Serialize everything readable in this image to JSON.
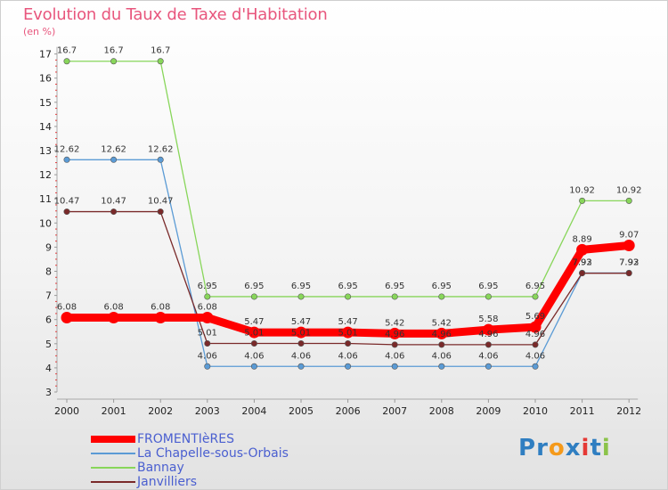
{
  "header": {
    "title": "Evolution du Taux de Taxe d'Habitation",
    "subtitle": "(en %)"
  },
  "chart_data": {
    "type": "line",
    "title": "Evolution du Taux de Taxe d'Habitation",
    "ylabel": "(en %)",
    "xlabel": "",
    "categories": [
      "2000",
      "2001",
      "2002",
      "2003",
      "2004",
      "2005",
      "2006",
      "2007",
      "2008",
      "2009",
      "2010",
      "2011",
      "2012"
    ],
    "ylim": [
      3,
      17
    ],
    "yticks": [
      "3",
      "4",
      "5",
      "6",
      "7",
      "8",
      "9",
      "10",
      "11",
      "12",
      "13",
      "14",
      "15",
      "16",
      "17"
    ],
    "grid": false,
    "legend_position": "bottom-left",
    "series": [
      {
        "name": "La Chapelle-sous-Orbais",
        "color": "#5b9bd5",
        "values": [
          12.62,
          12.62,
          12.62,
          4.06,
          4.06,
          4.06,
          4.06,
          4.06,
          4.06,
          4.06,
          4.06,
          7.93,
          7.93
        ],
        "labels": [
          "12.62",
          "12.62",
          "12.62",
          "4.06",
          "4.06",
          "4.06",
          "4.06",
          "4.06",
          "4.06",
          "4.06",
          "4.06",
          "7.93",
          "7.93"
        ]
      },
      {
        "name": "Bannay",
        "color": "#88d65a",
        "values": [
          16.7,
          16.7,
          16.7,
          6.95,
          6.95,
          6.95,
          6.95,
          6.95,
          6.95,
          6.95,
          6.95,
          10.92,
          10.92
        ],
        "labels": [
          "16.7",
          "16.7",
          "16.7",
          "6.95",
          "6.95",
          "6.95",
          "6.95",
          "6.95",
          "6.95",
          "6.95",
          "6.95",
          "10.92",
          "10.92"
        ]
      },
      {
        "name": "Janvilliers",
        "color": "#7a2a2a",
        "values": [
          10.47,
          10.47,
          10.47,
          5.01,
          5.01,
          5.01,
          5.01,
          4.96,
          4.96,
          4.96,
          4.96,
          7.92,
          7.92
        ],
        "labels": [
          "10.47",
          "10.47",
          "10.47",
          "5.01",
          "5.01",
          "5.01",
          "5.01",
          "4.96",
          "4.96",
          "4.96",
          "4.96",
          "7.92",
          "7.92"
        ]
      },
      {
        "name": "FROMENTIèRES",
        "color": "#ff0000",
        "values": [
          6.08,
          6.08,
          6.08,
          6.08,
          5.47,
          5.47,
          5.47,
          5.42,
          5.42,
          5.58,
          5.69,
          8.89,
          9.07
        ],
        "labels": [
          "6.08",
          "6.08",
          "6.08",
          "6.08",
          "5.47",
          "5.47",
          "5.47",
          "5.42",
          "5.42",
          "5.58",
          "5.69",
          "8.89",
          "9.07"
        ]
      }
    ]
  },
  "legend": [
    {
      "label": "FROMENTIèRES",
      "color": "#ff0000"
    },
    {
      "label": "La Chapelle-sous-Orbais",
      "color": "#5b9bd5"
    },
    {
      "label": "Bannay",
      "color": "#88d65a"
    },
    {
      "label": "Janvilliers",
      "color": "#7a2a2a"
    }
  ],
  "logo": {
    "text": "Proxiti",
    "letters": [
      "P",
      "r",
      "o",
      "x",
      "i",
      "t",
      "i"
    ],
    "colors": [
      "#2f7ec1",
      "#2f7ec1",
      "#f59a1b",
      "#2f7ec1",
      "#e53935",
      "#2f7ec1",
      "#8bc34a"
    ]
  }
}
